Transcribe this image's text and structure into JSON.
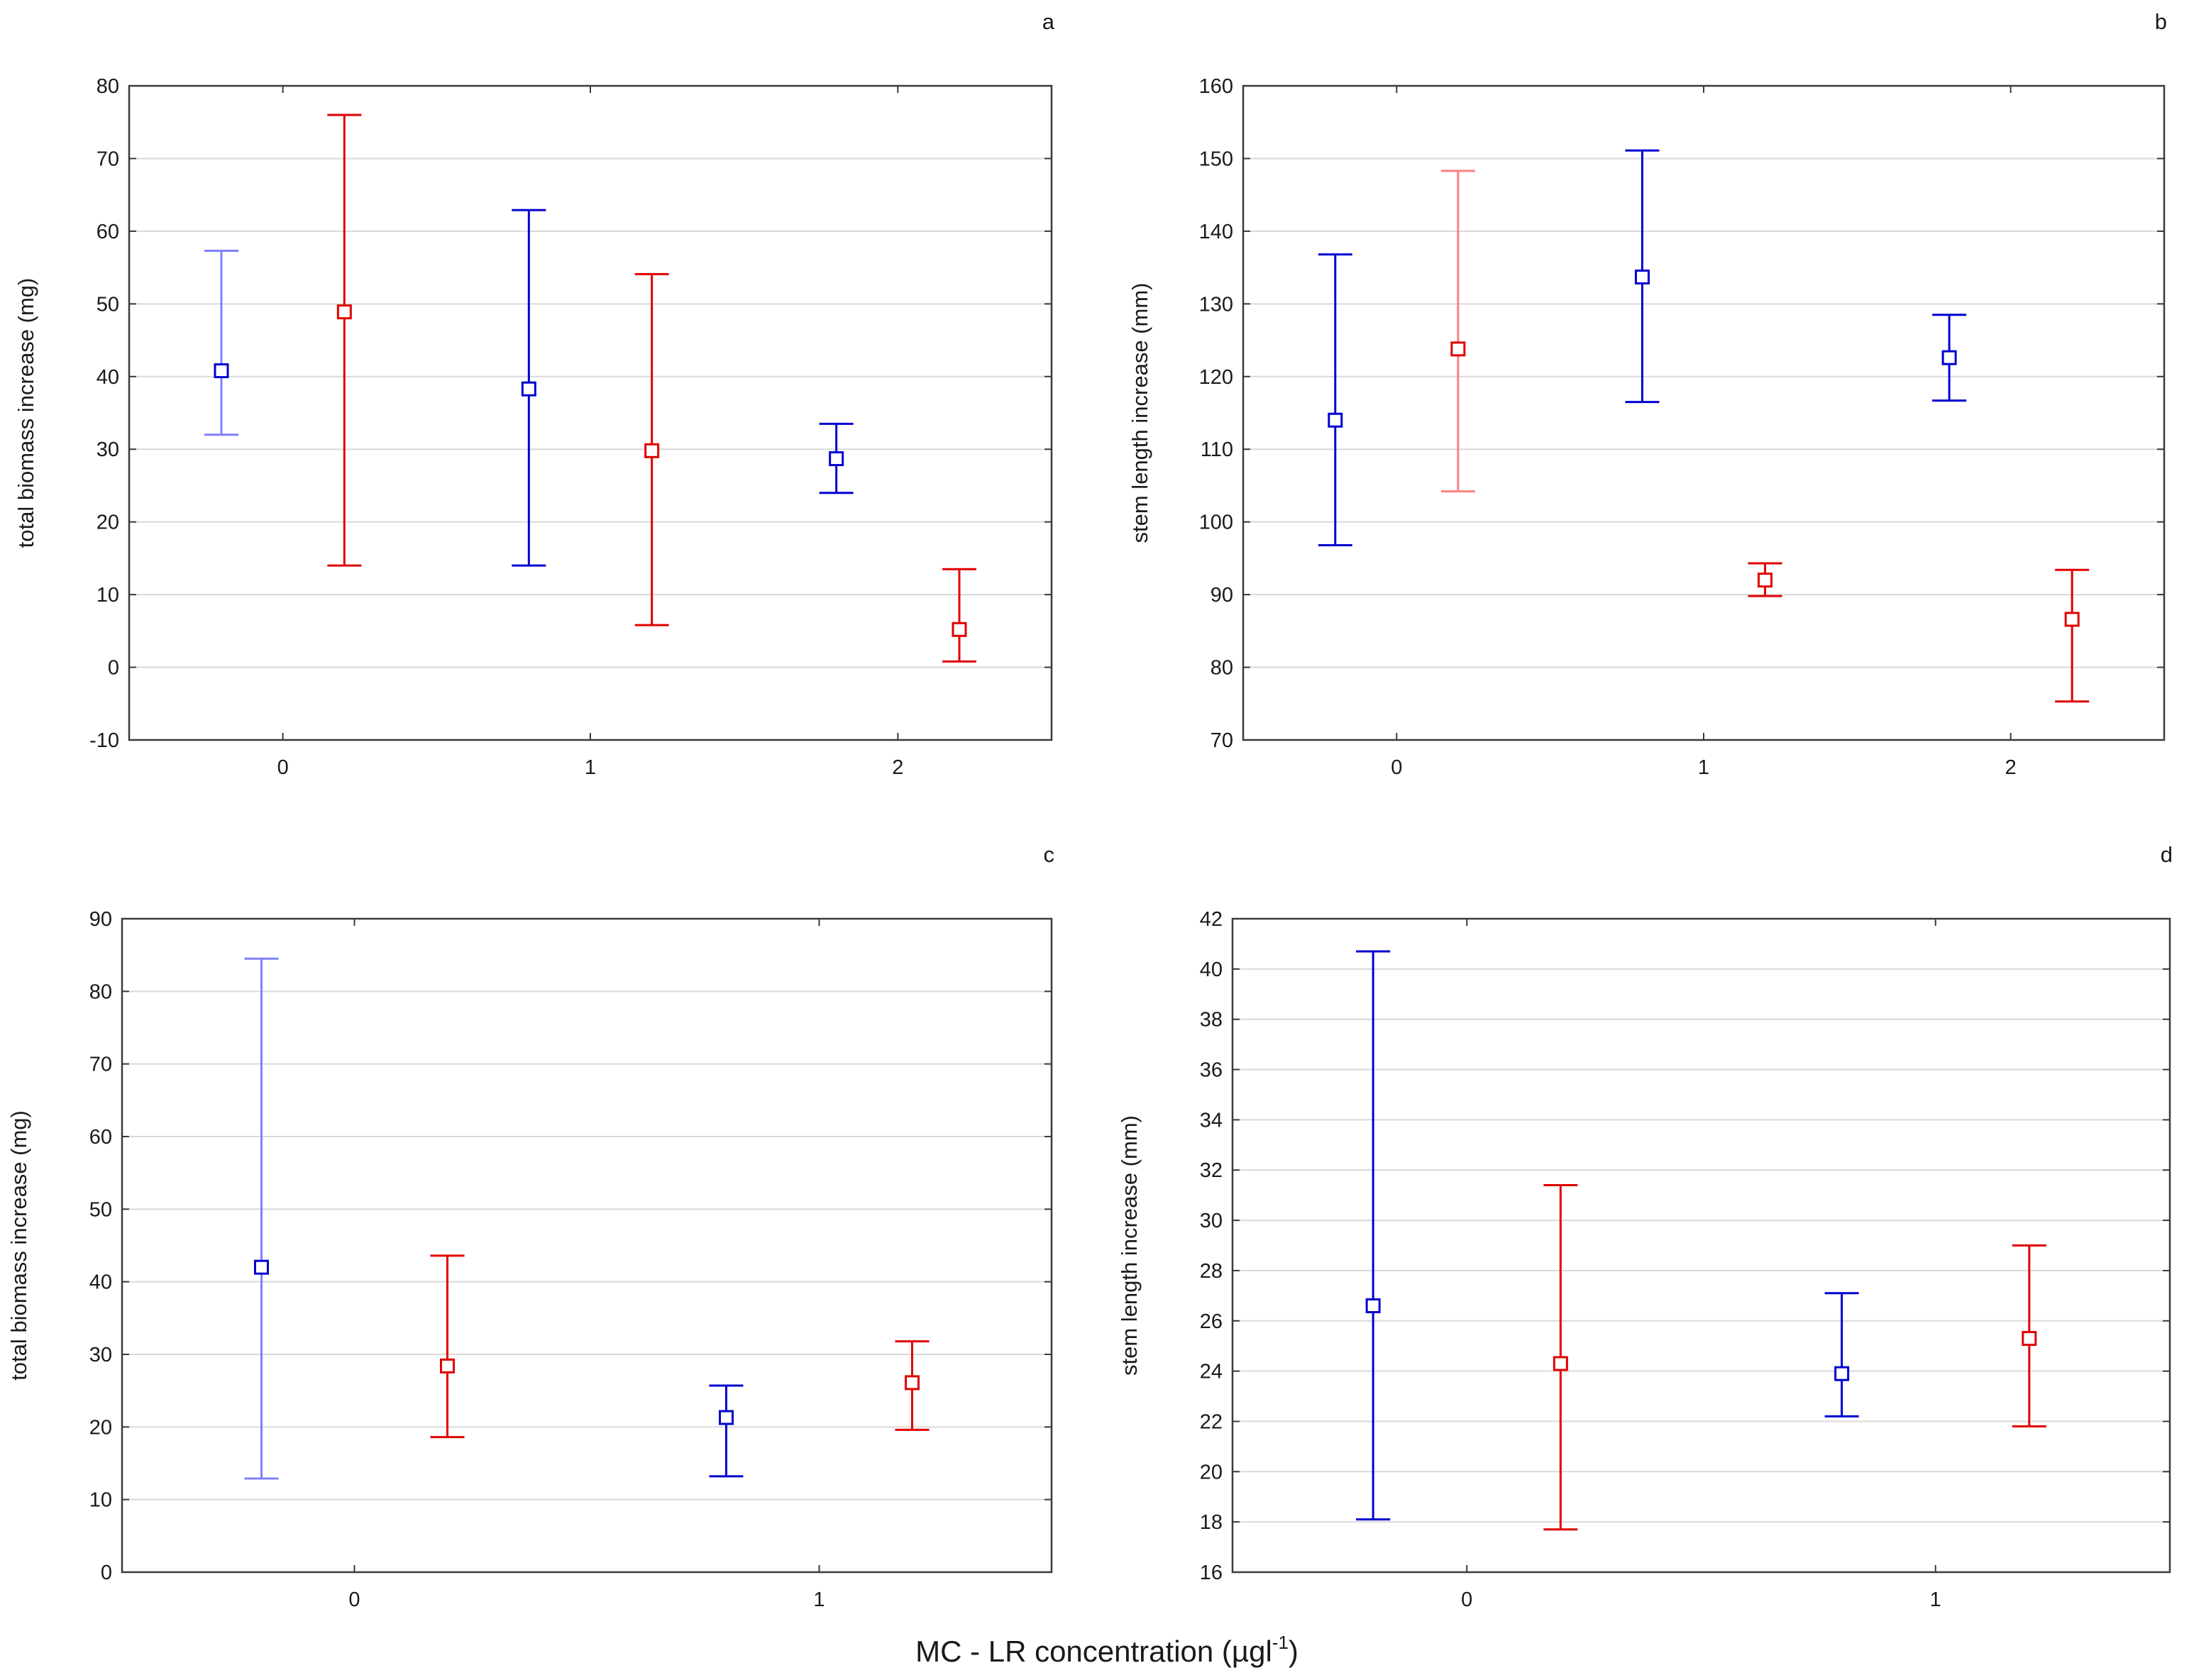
{
  "figure": {
    "xaxis_title_main": "MC - LR concentration (µgl",
    "xaxis_title_sup": "-1",
    "xaxis_title_close": ")"
  },
  "colors": {
    "group_a": "#0000d0",
    "group_b": "#e00000",
    "group_a_light": "#7f80ff",
    "group_b_light": "#ff8080"
  },
  "chart_data": [
    {
      "id": "a",
      "type": "scatter",
      "panel_label": "a",
      "ylabel": "total biomass increase (mg)",
      "ylim": [
        -10,
        80
      ],
      "yticks": [
        -10,
        0,
        10,
        20,
        30,
        40,
        50,
        60,
        70,
        80
      ],
      "xlim": [
        -0.5,
        2.5
      ],
      "xticks": [
        0,
        1,
        2
      ],
      "grid": true,
      "series": [
        {
          "name": "group_a",
          "color": "#0000d0",
          "points": [
            {
              "x": -0.2,
              "mean": 40.8,
              "lower": 32.0,
              "upper": 57.3,
              "light": true
            },
            {
              "x": 0.8,
              "mean": 38.3,
              "lower": 14.0,
              "upper": 62.9,
              "light": false
            },
            {
              "x": 1.8,
              "mean": 28.7,
              "lower": 24.0,
              "upper": 33.5,
              "light": false
            }
          ]
        },
        {
          "name": "group_b",
          "color": "#e00000",
          "points": [
            {
              "x": 0.2,
              "mean": 48.9,
              "lower": 14.0,
              "upper": 76.0,
              "light": false
            },
            {
              "x": 1.2,
              "mean": 29.8,
              "lower": 5.8,
              "upper": 54.1,
              "light": false
            },
            {
              "x": 2.2,
              "mean": 5.2,
              "lower": 0.8,
              "upper": 13.5,
              "light": false
            }
          ]
        }
      ]
    },
    {
      "id": "b",
      "type": "scatter",
      "panel_label": "b",
      "ylabel": "stem length increase (mm)",
      "ylim": [
        70,
        160
      ],
      "yticks": [
        70,
        80,
        90,
        100,
        110,
        120,
        130,
        140,
        150,
        160
      ],
      "xlim": [
        -0.5,
        2.5
      ],
      "xticks": [
        0,
        1,
        2
      ],
      "grid": true,
      "series": [
        {
          "name": "group_a",
          "color": "#0000d0",
          "points": [
            {
              "x": -0.2,
              "mean": 114.0,
              "lower": 96.8,
              "upper": 136.8,
              "light": false
            },
            {
              "x": 0.8,
              "mean": 133.7,
              "lower": 116.5,
              "upper": 151.1,
              "light": false
            },
            {
              "x": 1.8,
              "mean": 122.6,
              "lower": 116.7,
              "upper": 128.5,
              "light": false
            }
          ]
        },
        {
          "name": "group_b",
          "color": "#e00000",
          "points": [
            {
              "x": 0.2,
              "mean": 123.8,
              "lower": 104.2,
              "upper": 148.3,
              "light": true
            },
            {
              "x": 1.2,
              "mean": 92.0,
              "lower": 89.8,
              "upper": 94.3,
              "light": false
            },
            {
              "x": 2.2,
              "mean": 86.6,
              "lower": 75.3,
              "upper": 93.4,
              "light": false
            }
          ]
        }
      ]
    },
    {
      "id": "c",
      "type": "scatter",
      "panel_label": "c",
      "ylabel": "total biomass increase (mg)",
      "ylim": [
        0,
        90
      ],
      "yticks": [
        0,
        10,
        20,
        30,
        40,
        50,
        60,
        70,
        80,
        90
      ],
      "xlim": [
        -0.5,
        1.5
      ],
      "xticks": [
        0,
        1
      ],
      "grid": true,
      "series": [
        {
          "name": "group_a",
          "color": "#0000d0",
          "points": [
            {
              "x": -0.2,
              "mean": 42.0,
              "lower": 12.9,
              "upper": 84.5,
              "light": true
            },
            {
              "x": 0.8,
              "mean": 21.3,
              "lower": 13.2,
              "upper": 25.7,
              "light": false
            }
          ]
        },
        {
          "name": "group_b",
          "color": "#e00000",
          "points": [
            {
              "x": 0.2,
              "mean": 28.4,
              "lower": 18.6,
              "upper": 43.6,
              "light": false
            },
            {
              "x": 1.2,
              "mean": 26.1,
              "lower": 19.6,
              "upper": 31.8,
              "light": false
            }
          ]
        }
      ]
    },
    {
      "id": "d",
      "type": "scatter",
      "panel_label": "d",
      "ylabel": "stem length increase (mm)",
      "ylim": [
        16,
        42
      ],
      "yticks": [
        16,
        18,
        20,
        22,
        24,
        26,
        28,
        30,
        32,
        34,
        36,
        38,
        40,
        42
      ],
      "xlim": [
        -0.5,
        1.5
      ],
      "xticks": [
        0,
        1
      ],
      "grid": true,
      "series": [
        {
          "name": "group_a",
          "color": "#0000d0",
          "points": [
            {
              "x": -0.2,
              "mean": 26.6,
              "lower": 18.1,
              "upper": 40.7,
              "light": false
            },
            {
              "x": 0.8,
              "mean": 23.9,
              "lower": 22.2,
              "upper": 27.1,
              "light": false
            }
          ]
        },
        {
          "name": "group_b",
          "color": "#e00000",
          "points": [
            {
              "x": 0.2,
              "mean": 24.3,
              "lower": 17.7,
              "upper": 31.4,
              "light": false
            },
            {
              "x": 1.2,
              "mean": 25.3,
              "lower": 21.8,
              "upper": 29.0,
              "light": false
            }
          ]
        }
      ]
    }
  ]
}
